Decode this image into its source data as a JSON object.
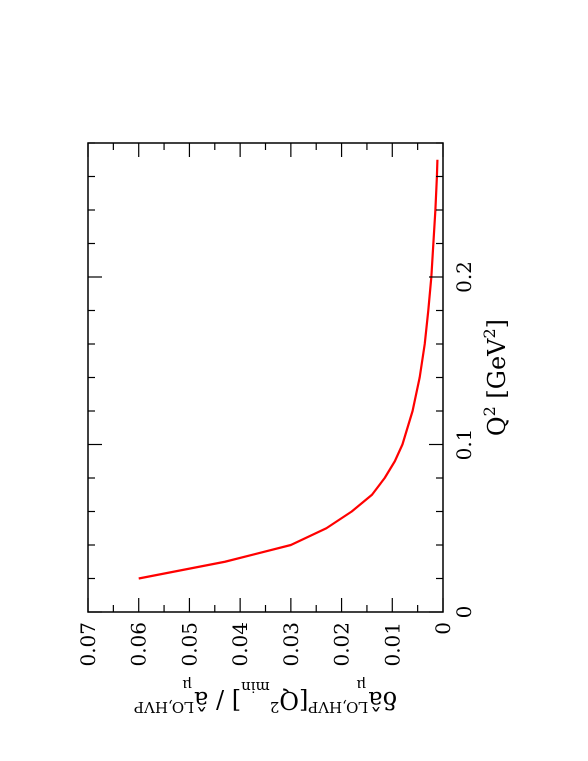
{
  "chart_data": {
    "type": "line",
    "orientation": "rotated-90-counterclockwise",
    "grid": false,
    "x_axis": {
      "label_parts": {
        "base": "Q",
        "sup": "2",
        "unit_open": " [GeV",
        "unit_sup": "2",
        "unit_close": "]"
      },
      "range": [
        0,
        0.28
      ],
      "ticks": [
        0,
        0.1,
        0.2
      ],
      "tick_labels": [
        "0",
        "0.1",
        "0.2"
      ],
      "minor_step": 0.02
    },
    "y_axis": {
      "label_parts": {
        "prefix": "δâ",
        "sup1": "LO,HVP",
        "sub1": "μ",
        "mid": "[Q",
        "sup2": "2",
        "sub2": "min",
        "after": "] / â",
        "sup3": "LO,HVP",
        "sub3": "μ"
      },
      "range": [
        0,
        0.07
      ],
      "ticks": [
        0,
        0.01,
        0.02,
        0.03,
        0.04,
        0.05,
        0.06,
        0.07
      ],
      "tick_labels": [
        "0",
        "0.01",
        "0.02",
        "0.03",
        "0.04",
        "0.05",
        "0.06",
        "0.07"
      ],
      "minor_step": 0.005
    },
    "series": [
      {
        "color": "#ff0000",
        "x": [
          0.02,
          0.03,
          0.04,
          0.05,
          0.06,
          0.07,
          0.08,
          0.09,
          0.1,
          0.12,
          0.14,
          0.16,
          0.18,
          0.2,
          0.22,
          0.24,
          0.26,
          0.27
        ],
        "y": [
          0.06,
          0.043,
          0.03,
          0.023,
          0.018,
          0.014,
          0.0115,
          0.0095,
          0.008,
          0.006,
          0.0046,
          0.0036,
          0.0029,
          0.0023,
          0.0019,
          0.0015,
          0.0012,
          0.0011
        ]
      }
    ]
  }
}
